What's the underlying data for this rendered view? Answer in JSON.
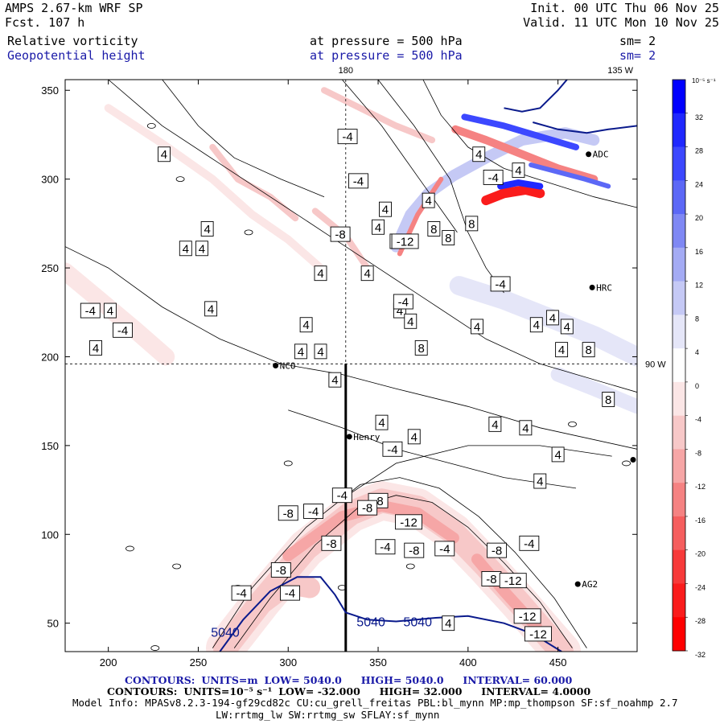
{
  "header": {
    "model": "AMPS 2.67-km WRF SP",
    "forecast_hour": "Fcst. 107 h",
    "init": "Init. 00 UTC Thu 06 Nov 25",
    "valid": "Valid. 11 UTC Mon 10 Nov 25",
    "field1_name": "Relative vorticity",
    "field1_level": "at pressure = 500 hPa",
    "field1_sm": "sm= 2",
    "field2_name": "Geopotential height",
    "field2_level": "at pressure = 500 hPa",
    "field2_sm": "sm= 2"
  },
  "colors": {
    "blue_text": "#1a1aa8",
    "height_contour": "#0a1a8c",
    "positive_max": "#0000ff",
    "negative_max": "#ff0000"
  },
  "chart_data": {
    "type": "heatmap",
    "title": "Relative vorticity / Geopotential height at 500 hPa",
    "x_ticks": [
      "200",
      "250",
      "300",
      "350",
      "400",
      "450"
    ],
    "x_tick_values": [
      200,
      250,
      300,
      350,
      400,
      450
    ],
    "y_ticks": [
      "50",
      "100",
      "150",
      "200",
      "250",
      "300",
      "350"
    ],
    "y_tick_values": [
      50,
      100,
      150,
      200,
      250,
      300,
      350
    ],
    "xlim": [
      176,
      494
    ],
    "ylim": [
      34,
      356
    ],
    "grid_lines": {
      "meridian_180_label": "180",
      "meridian_135w_label": "135 W",
      "parallel_90w_label": "90 W"
    },
    "stations": [
      {
        "name": "NCO",
        "x": 293,
        "y": 195
      },
      {
        "name": "Henry",
        "x": 334,
        "y": 155
      },
      {
        "name": "HRC",
        "x": 469,
        "y": 239
      },
      {
        "name": "AG2",
        "x": 461,
        "y": 72
      },
      {
        "name": "ADC",
        "x": 467,
        "y": 314
      }
    ],
    "vorticity_labels": [
      {
        "v": "-4",
        "x": 333,
        "y": 324
      },
      {
        "v": "4",
        "x": 231,
        "y": 314
      },
      {
        "v": "4",
        "x": 406,
        "y": 314
      },
      {
        "v": "-4",
        "x": 339,
        "y": 299
      },
      {
        "v": "4",
        "x": 354,
        "y": 283
      },
      {
        "v": "4",
        "x": 378,
        "y": 288
      },
      {
        "v": "-8",
        "x": 329,
        "y": 269
      },
      {
        "v": "4",
        "x": 255,
        "y": 272
      },
      {
        "v": "4",
        "x": 243,
        "y": 261
      },
      {
        "v": "4",
        "x": 252,
        "y": 261
      },
      {
        "v": "4",
        "x": 350,
        "y": 273
      },
      {
        "v": "4",
        "x": 360,
        "y": 265
      },
      {
        "v": "-12",
        "x": 365,
        "y": 265
      },
      {
        "v": "8",
        "x": 381,
        "y": 272
      },
      {
        "v": "8",
        "x": 389,
        "y": 267
      },
      {
        "v": "8",
        "x": 402,
        "y": 275
      },
      {
        "v": "-4",
        "x": 418,
        "y": 241
      },
      {
        "v": "4",
        "x": 344,
        "y": 247
      },
      {
        "v": "4",
        "x": 318,
        "y": 247
      },
      {
        "v": "4",
        "x": 362,
        "y": 226
      },
      {
        "v": "-4",
        "x": 364,
        "y": 231
      },
      {
        "v": "4",
        "x": 201,
        "y": 226
      },
      {
        "v": "-4",
        "x": 190,
        "y": 226
      },
      {
        "v": "-4",
        "x": 208,
        "y": 215
      },
      {
        "v": "4",
        "x": 193,
        "y": 205
      },
      {
        "v": "4",
        "x": 257,
        "y": 227
      },
      {
        "v": "4",
        "x": 310,
        "y": 218
      },
      {
        "v": "4",
        "x": 368,
        "y": 220
      },
      {
        "v": "8",
        "x": 374,
        "y": 205
      },
      {
        "v": "4",
        "x": 405,
        "y": 217
      },
      {
        "v": "4",
        "x": 438,
        "y": 218
      },
      {
        "v": "4",
        "x": 452,
        "y": 204
      },
      {
        "v": "8",
        "x": 467,
        "y": 204
      },
      {
        "v": "4",
        "x": 447,
        "y": 222
      },
      {
        "v": "4",
        "x": 455,
        "y": 217
      },
      {
        "v": "4",
        "x": 307,
        "y": 203
      },
      {
        "v": "4",
        "x": 318,
        "y": 203
      },
      {
        "v": "4",
        "x": 326,
        "y": 187
      },
      {
        "v": "8",
        "x": 478,
        "y": 176
      },
      {
        "v": "4",
        "x": 352,
        "y": 163
      },
      {
        "v": "4",
        "x": 370,
        "y": 155
      },
      {
        "v": "4",
        "x": 415,
        "y": 162
      },
      {
        "v": "4",
        "x": 432,
        "y": 160
      },
      {
        "v": "4",
        "x": 450,
        "y": 145
      },
      {
        "v": "-4",
        "x": 358,
        "y": 148
      },
      {
        "v": "4",
        "x": 440,
        "y": 130
      },
      {
        "v": "-4",
        "x": 330,
        "y": 122
      },
      {
        "v": "-8",
        "x": 350,
        "y": 119
      },
      {
        "v": "-8",
        "x": 344,
        "y": 115
      },
      {
        "v": "-4",
        "x": 314,
        "y": 113
      },
      {
        "v": "-8",
        "x": 300,
        "y": 112
      },
      {
        "v": "-12",
        "x": 367,
        "y": 107
      },
      {
        "v": "-8",
        "x": 324,
        "y": 95
      },
      {
        "v": "-4",
        "x": 354,
        "y": 93
      },
      {
        "v": "-8",
        "x": 370,
        "y": 91
      },
      {
        "v": "-4",
        "x": 387,
        "y": 92
      },
      {
        "v": "-8",
        "x": 416,
        "y": 91
      },
      {
        "v": "-4",
        "x": 434,
        "y": 95
      },
      {
        "v": "-8",
        "x": 413,
        "y": 75
      },
      {
        "v": "-12",
        "x": 425,
        "y": 74
      },
      {
        "v": "-8",
        "x": 296,
        "y": 80
      },
      {
        "v": "-4",
        "x": 301,
        "y": 67
      },
      {
        "v": "-4",
        "x": 274,
        "y": 67
      },
      {
        "v": "-12",
        "x": 433,
        "y": 54
      },
      {
        "v": "-12",
        "x": 439,
        "y": 44
      },
      {
        "v": "4",
        "x": 389,
        "y": 50
      },
      {
        "v": "-4",
        "x": 414,
        "y": 301
      },
      {
        "v": "4",
        "x": 428,
        "y": 305
      }
    ],
    "height_contour_labels": [
      {
        "v": "5040",
        "x": 265,
        "y": 45
      },
      {
        "v": "5040",
        "x": 346,
        "y": 51
      },
      {
        "v": "5040",
        "x": 372,
        "y": 51
      }
    ],
    "colorbar": {
      "unit_label": "10⁻⁵ s⁻¹",
      "levels": [
        32,
        28,
        24,
        20,
        16,
        12,
        8,
        4,
        0,
        -4,
        -8,
        -12,
        -16,
        -20,
        -24,
        -28,
        -32
      ],
      "level_labels": [
        "32",
        "28",
        "24",
        "20",
        "16",
        "12",
        "8",
        "4",
        "0",
        "-4",
        "-8",
        "-12",
        "-16",
        "-20",
        "-24",
        "-28",
        "-32"
      ],
      "colors_top_to_bottom": [
        "#0000ff",
        "#1f28ff",
        "#3c48ff",
        "#5c68f6",
        "#7f88f4",
        "#a4abf4",
        "#c5c9f5",
        "#e5e6f8",
        "#ffffff",
        "#fbe6e6",
        "#f7c8c8",
        "#f6a6a6",
        "#f58282",
        "#f55e5e",
        "#f73a3a",
        "#fa1c1c",
        "#ff0000"
      ]
    },
    "footer": {
      "contours1_label": "CONTOURS:",
      "contours1_units": "UNITS=m",
      "contours1_low": "LOW= 5040.0",
      "contours1_high": "HIGH= 5040.0",
      "contours1_interval": "INTERVAL= 60.000",
      "contours2_label": "CONTOURS:",
      "contours2_units": "UNITS=10⁻⁵ s⁻¹",
      "contours2_low": "LOW= -32.000",
      "contours2_high": "HIGH= 32.000",
      "contours2_interval": "INTERVAL= 4.0000",
      "model_info": "Model Info: MPASv8.2.3-194-gf29cd82c CU:cu_grell_freitas PBL:bl_mynn MP:mp_thompson SF:sf_noahmp 2.7",
      "model_info2": "LW:rrtmg_lw SW:rrtmg_sw SFLAY:sf_mynn"
    }
  }
}
